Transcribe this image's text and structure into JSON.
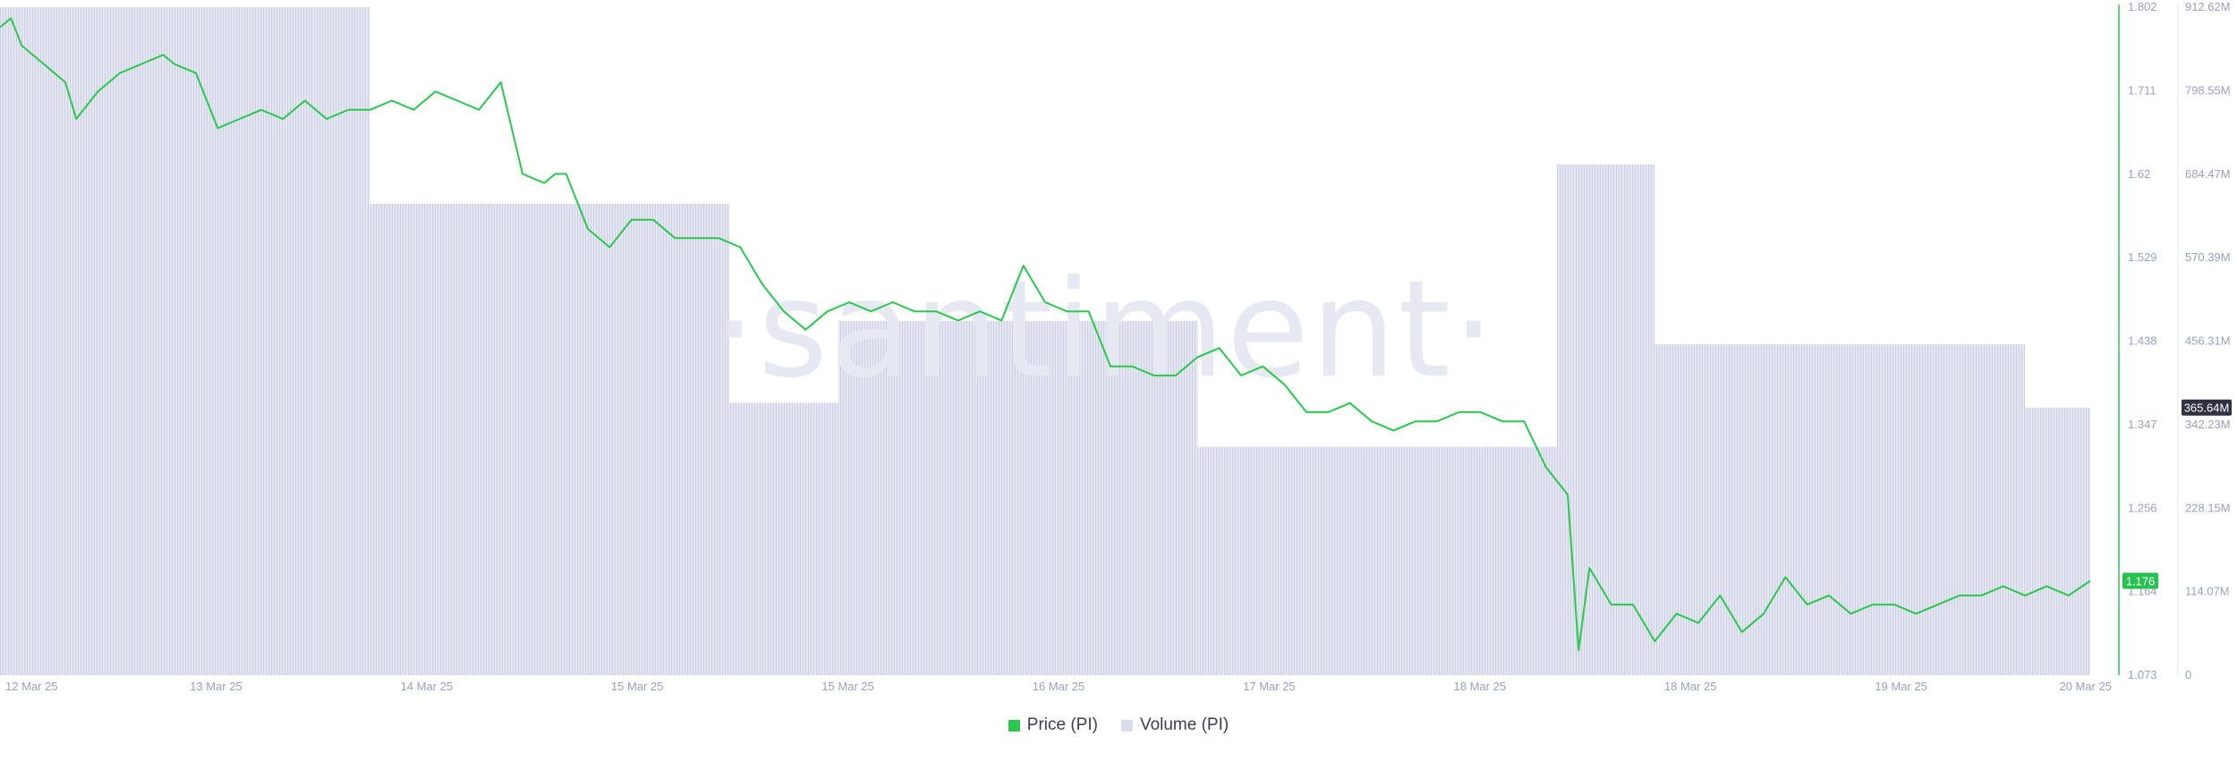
{
  "watermark": "·santiment·",
  "legend": {
    "price_label": "Price (PI)",
    "volume_label": "Volume (PI)"
  },
  "colors": {
    "price": "#2bc84f",
    "volume_fill": "#dfe1ef",
    "volume_stripe": "#c9ccdf",
    "axis_text": "#9aa0bd",
    "price_badge_bg": "#26c250",
    "volume_badge_bg": "#2f3242",
    "watermark": "#e6e8f2"
  },
  "chart_data": {
    "type": "line",
    "title": "",
    "xlabel": "",
    "x_ticks": [
      "12 Mar 25",
      "13 Mar 25",
      "14 Mar 25",
      "15 Mar 25",
      "15 Mar 25",
      "16 Mar 25",
      "17 Mar 25",
      "18 Mar 25",
      "18 Mar 25",
      "19 Mar 25",
      "20 Mar 25"
    ],
    "x_range": [
      "2025-03-12T00:00",
      "2025-03-20T00:00"
    ],
    "price_axis": {
      "label": "Price (PI)",
      "ticks": [
        "1.802",
        "1.711",
        "1.62",
        "1.529",
        "1.438",
        "1.347",
        "1.256",
        "1.164",
        "1.073"
      ],
      "ylim": [
        1.073,
        1.802
      ],
      "current_value": "1.176"
    },
    "volume_axis": {
      "label": "Volume (PI)",
      "ticks": [
        "912.62M",
        "798.55M",
        "684.47M",
        "570.39M",
        "456.31M",
        "342.23M",
        "228.15M",
        "114.07M",
        "0"
      ],
      "ylim_millions": [
        0,
        912.62
      ],
      "current_value": "365.64M"
    },
    "series": [
      {
        "name": "Price (PI)",
        "type": "line",
        "x": [
          "2025-03-12T00:00",
          "2025-03-12T01:00",
          "2025-03-12T02:00",
          "2025-03-12T04:00",
          "2025-03-12T06:00",
          "2025-03-12T07:00",
          "2025-03-12T09:00",
          "2025-03-12T11:00",
          "2025-03-12T13:00",
          "2025-03-12T15:00",
          "2025-03-12T16:00",
          "2025-03-12T18:00",
          "2025-03-12T20:00",
          "2025-03-12T22:00",
          "2025-03-13T00:00",
          "2025-03-13T02:00",
          "2025-03-13T04:00",
          "2025-03-13T06:00",
          "2025-03-13T08:00",
          "2025-03-13T10:00",
          "2025-03-13T12:00",
          "2025-03-13T14:00",
          "2025-03-13T16:00",
          "2025-03-13T18:00",
          "2025-03-13T20:00",
          "2025-03-13T22:00",
          "2025-03-14T00:00",
          "2025-03-14T02:00",
          "2025-03-14T03:00",
          "2025-03-14T04:00",
          "2025-03-14T06:00",
          "2025-03-14T08:00",
          "2025-03-14T10:00",
          "2025-03-14T12:00",
          "2025-03-14T14:00",
          "2025-03-14T16:00",
          "2025-03-14T18:00",
          "2025-03-14T20:00",
          "2025-03-14T22:00",
          "2025-03-15T00:00",
          "2025-03-15T02:00",
          "2025-03-15T04:00",
          "2025-03-15T06:00",
          "2025-03-15T08:00",
          "2025-03-15T10:00",
          "2025-03-15T12:00",
          "2025-03-15T14:00",
          "2025-03-15T16:00",
          "2025-03-15T18:00",
          "2025-03-15T20:00",
          "2025-03-15T22:00",
          "2025-03-16T00:00",
          "2025-03-16T02:00",
          "2025-03-16T04:00",
          "2025-03-16T06:00",
          "2025-03-16T08:00",
          "2025-03-16T10:00",
          "2025-03-16T12:00",
          "2025-03-16T14:00",
          "2025-03-16T16:00",
          "2025-03-16T18:00",
          "2025-03-16T20:00",
          "2025-03-16T22:00",
          "2025-03-17T00:00",
          "2025-03-17T02:00",
          "2025-03-17T04:00",
          "2025-03-17T06:00",
          "2025-03-17T08:00",
          "2025-03-17T10:00",
          "2025-03-17T12:00",
          "2025-03-17T14:00",
          "2025-03-17T16:00",
          "2025-03-17T18:00",
          "2025-03-17T20:00",
          "2025-03-17T22:00",
          "2025-03-18T00:00",
          "2025-03-18T01:00",
          "2025-03-18T02:00",
          "2025-03-18T04:00",
          "2025-03-18T06:00",
          "2025-03-18T08:00",
          "2025-03-18T10:00",
          "2025-03-18T12:00",
          "2025-03-18T14:00",
          "2025-03-18T16:00",
          "2025-03-18T18:00",
          "2025-03-18T20:00",
          "2025-03-18T22:00",
          "2025-03-19T00:00",
          "2025-03-19T02:00",
          "2025-03-19T04:00",
          "2025-03-19T06:00",
          "2025-03-19T08:00",
          "2025-03-19T10:00",
          "2025-03-19T12:00",
          "2025-03-19T14:00",
          "2025-03-19T16:00",
          "2025-03-19T18:00",
          "2025-03-19T20:00",
          "2025-03-19T22:00",
          "2025-03-20T00:00"
        ],
        "values": [
          1.78,
          1.79,
          1.76,
          1.74,
          1.72,
          1.68,
          1.71,
          1.73,
          1.74,
          1.75,
          1.74,
          1.73,
          1.67,
          1.68,
          1.69,
          1.68,
          1.7,
          1.68,
          1.69,
          1.69,
          1.7,
          1.69,
          1.71,
          1.7,
          1.69,
          1.72,
          1.62,
          1.61,
          1.62,
          1.62,
          1.56,
          1.54,
          1.57,
          1.57,
          1.55,
          1.55,
          1.55,
          1.54,
          1.5,
          1.47,
          1.45,
          1.47,
          1.48,
          1.47,
          1.48,
          1.47,
          1.47,
          1.46,
          1.47,
          1.46,
          1.52,
          1.48,
          1.47,
          1.47,
          1.41,
          1.41,
          1.4,
          1.4,
          1.42,
          1.43,
          1.4,
          1.41,
          1.39,
          1.36,
          1.36,
          1.37,
          1.35,
          1.34,
          1.35,
          1.35,
          1.36,
          1.36,
          1.35,
          1.35,
          1.3,
          1.27,
          1.1,
          1.19,
          1.15,
          1.15,
          1.11,
          1.14,
          1.13,
          1.16,
          1.12,
          1.14,
          1.18,
          1.15,
          1.16,
          1.14,
          1.15,
          1.15,
          1.14,
          1.15,
          1.16,
          1.16,
          1.17,
          1.16,
          1.17,
          1.16,
          1.176
        ]
      },
      {
        "name": "Volume (PI)",
        "type": "bar",
        "bins_start": [
          "2025-03-12T00:00",
          "2025-03-13T10:00",
          "2025-03-14T19:00",
          "2025-03-15T05:00",
          "2025-03-16T14:00",
          "2025-03-17T23:00",
          "2025-03-18T08:00",
          "2025-03-19T18:00"
        ],
        "values_millions": [
          912.62,
          644.0,
          372.0,
          484.0,
          312.0,
          698.0,
          452.0,
          365.64
        ]
      }
    ]
  }
}
